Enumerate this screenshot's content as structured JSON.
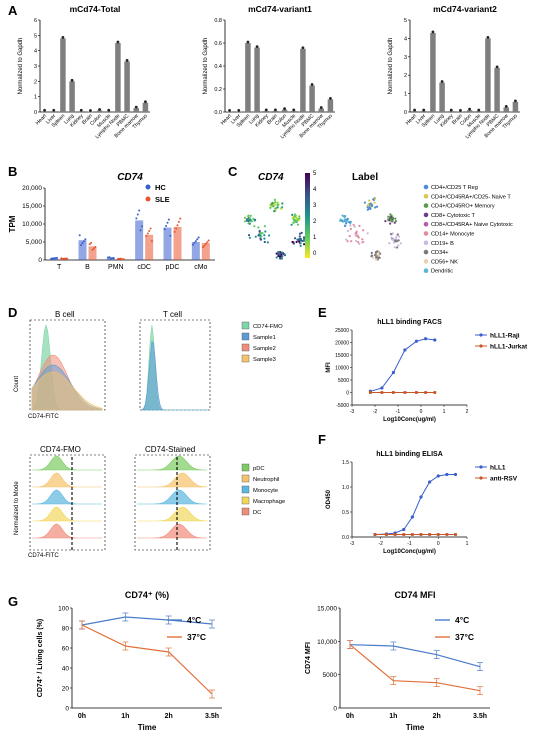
{
  "panels": {
    "A": {
      "label": "A",
      "ylabel": "Normalized to Gapdh",
      "categories": [
        "Heart",
        "Liver",
        "Spleen",
        "Lung",
        "Kidney",
        "Brain",
        "Colon",
        "Muscle",
        "Lympho Node",
        "PBMC",
        "Bone marrow",
        "Thymus"
      ],
      "bar_color": "#7f7f7f"
    },
    "B": {
      "label": "B",
      "title": "CD74",
      "ylabel": "TPM"
    },
    "C": {
      "label": "C",
      "title_left": "CD74",
      "title_right": "Label",
      "colorbar_ticks": [
        "0",
        "1",
        "2",
        "3",
        "4",
        "5"
      ],
      "legend": [
        {
          "text": "CD4+/CD25 T Reg",
          "color": "#4c8bd6"
        },
        {
          "text": "CD4+/CD45RA+/CD25- Naive T",
          "color": "#d8c84a"
        },
        {
          "text": "CD4+/CD45RO+ Memory",
          "color": "#5a9a4a"
        },
        {
          "text": "CD8+ Cytotoxic T",
          "color": "#6a3d8a"
        },
        {
          "text": "CD8+/CD45RA+ Naive Cytotoxic",
          "color": "#b55aa8"
        },
        {
          "text": "CD14+ Monocyte",
          "color": "#e58a9a"
        },
        {
          "text": "CD19+ B",
          "color": "#c9b7e0"
        },
        {
          "text": "CD34+",
          "color": "#7a7a7a"
        },
        {
          "text": "CD56+ NK",
          "color": "#e8d0b0"
        },
        {
          "text": "Dendritic",
          "color": "#58b6d0"
        }
      ]
    },
    "D": {
      "label": "D",
      "title_b": "B cell",
      "title_t": "T cell",
      "xlabel": "CD74-FITC",
      "ylabel_top": "Count",
      "ylabel_bottom": "Normalized to Mode",
      "title_fmo": "CD74-FMO",
      "title_stained": "CD74-Stained",
      "legend_top": [
        {
          "text": "CD74-FMO",
          "color": "#7fd6a8"
        },
        {
          "text": "Sample1",
          "color": "#5b9bd5"
        },
        {
          "text": "Sample2",
          "color": "#f08c7a"
        },
        {
          "text": "Sample3",
          "color": "#f5c36b"
        }
      ],
      "legend_bottom": [
        {
          "text": "pDC",
          "color": "#7ccc63"
        },
        {
          "text": "Neutrophil",
          "color": "#f5c36b"
        },
        {
          "text": "Monocyte",
          "color": "#5bb7e0"
        },
        {
          "text": "Macrophage",
          "color": "#f2d75c"
        },
        {
          "text": "DC",
          "color": "#f08c7a"
        }
      ]
    },
    "E": {
      "label": "E"
    },
    "F": {
      "label": "F"
    },
    "G": {
      "label": "G"
    }
  },
  "chart_data": [
    {
      "type": "bar",
      "title": "mCd74-Total",
      "ylabel": "Normalized to Gapdh",
      "categories": [
        "Heart",
        "Liver",
        "Spleen",
        "Lung",
        "Kidney",
        "Brain",
        "Colon",
        "Muscle",
        "Lympho Node",
        "PBMC",
        "Bone marrow",
        "Thymus"
      ],
      "values": [
        0.05,
        0.05,
        4.8,
        2.0,
        0.05,
        0.03,
        0.1,
        0.05,
        4.5,
        3.3,
        0.25,
        0.6
      ],
      "ylim": [
        0,
        6
      ],
      "yticks": [
        "0",
        "1",
        "2",
        "3",
        "4",
        "5",
        "6"
      ]
    },
    {
      "type": "bar",
      "title": "mCd74-variant1",
      "ylabel": "Normalized to Gapdh",
      "categories": [
        "Heart",
        "Liver",
        "Spleen",
        "Lung",
        "Kidney",
        "Brain",
        "Colon",
        "Muscle",
        "Lympho Node",
        "PBMC",
        "Bone marrow",
        "Thymus"
      ],
      "values": [
        0.005,
        0.005,
        0.6,
        0.56,
        0.01,
        0.01,
        0.02,
        0.01,
        0.55,
        0.23,
        0.03,
        0.11
      ],
      "ylim": [
        0,
        0.8
      ],
      "yticks": [
        "0.0",
        "0.2",
        "0.4",
        "0.6",
        "0.8"
      ]
    },
    {
      "type": "bar",
      "title": "mCd74-variant2",
      "ylabel": "Normalized to Gapdh",
      "categories": [
        "Heart",
        "Liver",
        "Spleen",
        "Lung",
        "Kidney",
        "Brain",
        "Colon",
        "Muscle",
        "Lympho Node",
        "PBMC",
        "Bone marrow",
        "Thymus"
      ],
      "values": [
        0.05,
        0.05,
        4.3,
        1.6,
        0.05,
        0.03,
        0.1,
        0.05,
        4.0,
        2.4,
        0.25,
        0.55
      ],
      "ylim": [
        0,
        5
      ],
      "yticks": [
        "0",
        "1",
        "2",
        "3",
        "4",
        "5"
      ]
    },
    {
      "type": "bar",
      "title": "CD74",
      "ylabel": "TPM",
      "categories": [
        "T",
        "B",
        "PMN",
        "cDC",
        "pDC",
        "cMo"
      ],
      "series": [
        {
          "name": "HC",
          "color": "#3a5fcd",
          "values": [
            500,
            5500,
            600,
            11000,
            9000,
            5000
          ]
        },
        {
          "name": "SLE",
          "color": "#e8552f",
          "values": [
            400,
            3800,
            300,
            7000,
            9200,
            4700
          ]
        }
      ],
      "ylim": [
        0,
        20000
      ],
      "yticks": [
        "0",
        "5,000",
        "10,000",
        "15,000",
        "20,000"
      ]
    },
    {
      "type": "line",
      "title": "hLL1 binding FACS",
      "ylabel": "MFI",
      "xlabel": "Log10Conc(ug/ml)",
      "series": [
        {
          "name": "hLL1-Raji",
          "color": "#3a5fcd",
          "x": [
            -2.2,
            -1.7,
            -1.2,
            -0.7,
            -0.2,
            0.2,
            0.6
          ],
          "y": [
            500,
            1800,
            8000,
            17000,
            20500,
            21500,
            21000
          ]
        },
        {
          "name": "hLL1-Jurkat",
          "color": "#c8562a",
          "x": [
            -2.2,
            -1.7,
            -1.2,
            -0.7,
            -0.2,
            0.2,
            0.6
          ],
          "y": [
            0,
            0,
            0,
            0,
            0,
            0,
            0
          ]
        }
      ],
      "xlim": [
        -3,
        2
      ],
      "ylim": [
        -5000,
        25000
      ],
      "xticks": [
        "-3",
        "-2",
        "-1",
        "0",
        "1",
        "2"
      ],
      "yticks": [
        "-5000",
        "0",
        "5000",
        "10000",
        "15000",
        "20000",
        "25000"
      ]
    },
    {
      "type": "line",
      "title": "hLL1 binding ELISA",
      "ylabel": "OD450",
      "xlabel": "Log10Conc(ug/ml)",
      "series": [
        {
          "name": "hLL1",
          "color": "#3a5fcd",
          "x": [
            -2.2,
            -1.8,
            -1.5,
            -1.2,
            -0.9,
            -0.6,
            -0.3,
            0.0,
            0.3,
            0.6
          ],
          "y": [
            0.05,
            0.06,
            0.08,
            0.15,
            0.4,
            0.8,
            1.1,
            1.22,
            1.25,
            1.25
          ]
        },
        {
          "name": "anti-RSV",
          "color": "#c8562a",
          "x": [
            -2.2,
            -1.8,
            -1.5,
            -1.2,
            -0.9,
            -0.6,
            -0.3,
            0.0,
            0.3,
            0.6
          ],
          "y": [
            0.05,
            0.05,
            0.05,
            0.05,
            0.05,
            0.05,
            0.05,
            0.05,
            0.05,
            0.05
          ]
        }
      ],
      "xlim": [
        -3,
        1
      ],
      "ylim": [
        0,
        1.5
      ],
      "xticks": [
        "-3",
        "-2",
        "-1",
        "0",
        "1"
      ],
      "yticks": [
        "0.0",
        "0.5",
        "1.0",
        "1.5"
      ]
    },
    {
      "type": "line",
      "title": "CD74⁺ (%)",
      "ylabel": "CD74⁺ / Living cells (%)",
      "xlabel": "Time",
      "categories": [
        "0h",
        "1h",
        "2h",
        "3.5h"
      ],
      "series": [
        {
          "name": "4°C",
          "color": "#4a7cc9",
          "values": [
            83,
            91,
            88,
            84
          ]
        },
        {
          "name": "37°C",
          "color": "#e0703a",
          "values": [
            83,
            62,
            56,
            14
          ]
        }
      ],
      "ylim": [
        0,
        100
      ],
      "yticks": [
        "0",
        "20",
        "40",
        "60",
        "80",
        "100"
      ]
    },
    {
      "type": "line",
      "title": "CD74 MFI",
      "ylabel": "CD74 MFI",
      "xlabel": "Time",
      "categories": [
        "0h",
        "1h",
        "2h",
        "3.5h"
      ],
      "series": [
        {
          "name": "4°C",
          "color": "#4a7cc9",
          "values": [
            9500,
            9300,
            8000,
            6200
          ]
        },
        {
          "name": "37°C",
          "color": "#e0703a",
          "values": [
            9500,
            4100,
            3800,
            2600
          ]
        }
      ],
      "ylim": [
        0,
        15000
      ],
      "yticks": [
        "0",
        "5000",
        "10,000",
        "15,000"
      ]
    }
  ]
}
